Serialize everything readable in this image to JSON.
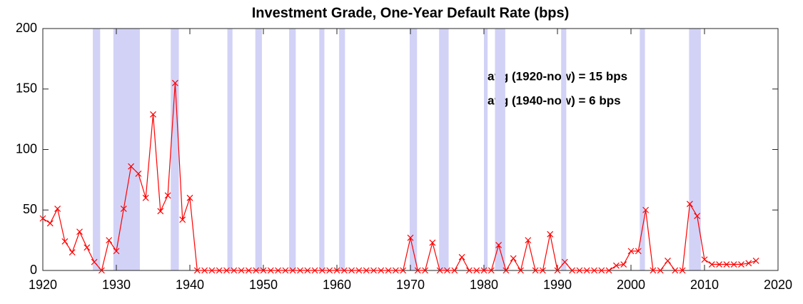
{
  "chart_data": {
    "type": "line",
    "title": "Investment Grade, One-Year Default Rate (bps)",
    "annotations": [
      "avg (1920-now) = 15 bps",
      "avg (1940-now) =  6 bps"
    ],
    "x": [
      1920,
      1921,
      1922,
      1923,
      1924,
      1925,
      1926,
      1927,
      1928,
      1929,
      1930,
      1931,
      1932,
      1933,
      1934,
      1935,
      1936,
      1937,
      1938,
      1939,
      1940,
      1941,
      1942,
      1943,
      1944,
      1945,
      1946,
      1947,
      1948,
      1949,
      1950,
      1951,
      1952,
      1953,
      1954,
      1955,
      1956,
      1957,
      1958,
      1959,
      1960,
      1961,
      1962,
      1963,
      1964,
      1965,
      1966,
      1967,
      1968,
      1969,
      1970,
      1971,
      1972,
      1973,
      1974,
      1975,
      1976,
      1977,
      1978,
      1979,
      1980,
      1981,
      1982,
      1983,
      1984,
      1985,
      1986,
      1987,
      1988,
      1989,
      1990,
      1991,
      1992,
      1993,
      1994,
      1995,
      1996,
      1997,
      1998,
      1999,
      2000,
      2001,
      2002,
      2003,
      2004,
      2005,
      2006,
      2007,
      2008,
      2009,
      2010,
      2011,
      2012,
      2013,
      2014,
      2015,
      2016,
      2017
    ],
    "series": [
      {
        "color": "#ff0000",
        "values": [
          43,
          39,
          51,
          24,
          15,
          32,
          19,
          7,
          0,
          25,
          16,
          51,
          86,
          80,
          60,
          129,
          49,
          62,
          155,
          42,
          60,
          0,
          0,
          0,
          0,
          0,
          0,
          0,
          0,
          0,
          0,
          0,
          0,
          0,
          0,
          0,
          0,
          0,
          0,
          0,
          0,
          0,
          0,
          0,
          0,
          0,
          0,
          0,
          0,
          0,
          27,
          0,
          0,
          23,
          0,
          0,
          0,
          11,
          0,
          0,
          0,
          0,
          21,
          0,
          10,
          0,
          25,
          0,
          0,
          30,
          0,
          7,
          0,
          0,
          0,
          0,
          0,
          0,
          4,
          5,
          16,
          16,
          50,
          0,
          0,
          8,
          0,
          0,
          55,
          45,
          9,
          5,
          5,
          5,
          5,
          5,
          6,
          8
        ]
      }
    ],
    "shading": [
      [
        1926.8,
        1927.8
      ],
      [
        1929.6,
        1933.2
      ],
      [
        1937.4,
        1938.5
      ],
      [
        1945.1,
        1945.8
      ],
      [
        1948.9,
        1949.8
      ],
      [
        1953.5,
        1954.4
      ],
      [
        1957.6,
        1958.3
      ],
      [
        1960.3,
        1961.1
      ],
      [
        1969.9,
        1970.9
      ],
      [
        1973.9,
        1975.2
      ],
      [
        1980.0,
        1980.5
      ],
      [
        1981.5,
        1982.9
      ],
      [
        1990.5,
        1991.2
      ],
      [
        2001.2,
        2001.9
      ],
      [
        2007.9,
        2009.5
      ]
    ],
    "shading_color": "#d2d2f7",
    "xlim": [
      1920,
      2020
    ],
    "xticks": [
      1920,
      1930,
      1940,
      1950,
      1960,
      1970,
      1980,
      1990,
      2000,
      2010,
      2020
    ],
    "ylim": [
      0,
      200
    ],
    "yticks": [
      0,
      50,
      100,
      150,
      200
    ],
    "grid": false
  }
}
